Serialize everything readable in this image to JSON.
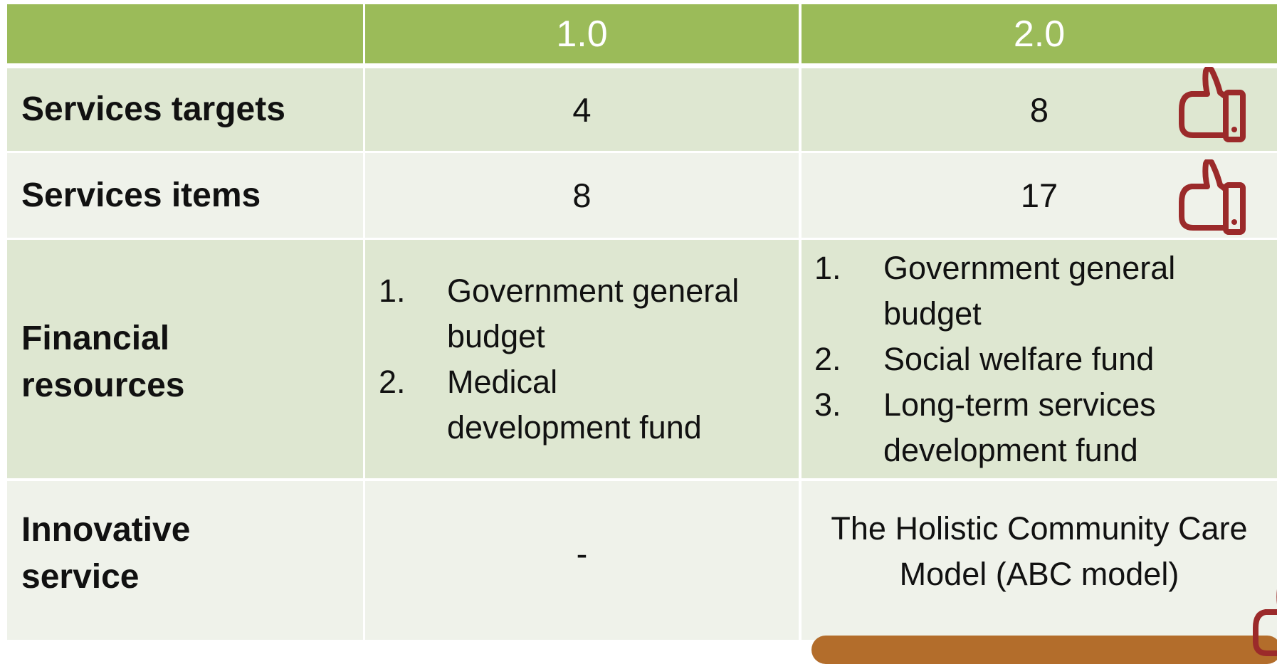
{
  "table": {
    "header": [
      "1.0",
      "2.0"
    ],
    "rows": [
      {
        "label": "Services targets",
        "v1": "4",
        "v2": "8"
      },
      {
        "label": "Services items",
        "v1": "8",
        "v2": "17"
      },
      {
        "label": "Financial resources",
        "v1": [
          {
            "number": "1.",
            "text": "Government general budget"
          },
          {
            "number": "2.",
            "text": "Medical development fund"
          }
        ],
        "v2": [
          {
            "number": "1.",
            "text": "Government general budget"
          },
          {
            "number": "2.",
            "text": "Social welfare fund"
          },
          {
            "number": "3.",
            "text": "Long-term services development fund"
          }
        ]
      },
      {
        "label": "Innovative service",
        "v1": "-",
        "v2": "The Holistic Community Care Model (ABC model)"
      }
    ]
  }
}
